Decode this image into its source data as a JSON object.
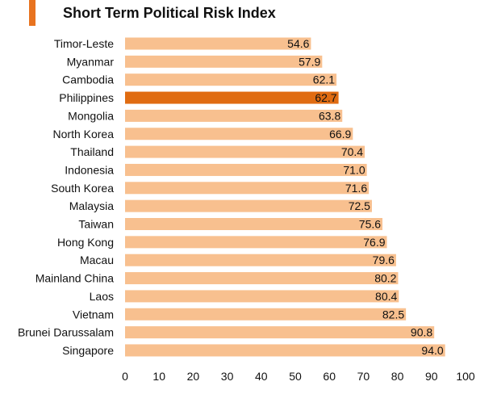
{
  "header": {
    "title": "Short Term Political Risk Index"
  },
  "colors": {
    "accent": "#e8731f",
    "bar": "#f8c08f",
    "highlight_bar": "#e06c12",
    "text": "#111111"
  },
  "chart_data": {
    "type": "bar",
    "orientation": "horizontal",
    "title": "Short Term Political Risk Index",
    "xlabel": "",
    "ylabel": "",
    "xlim": [
      0,
      100
    ],
    "x_ticks": [
      0,
      10,
      20,
      30,
      40,
      50,
      60,
      70,
      80,
      90,
      100
    ],
    "grid": false,
    "legend": "none",
    "highlight": "Philippines",
    "categories": [
      "Timor-Leste",
      "Myanmar",
      "Cambodia",
      "Philippines",
      "Mongolia",
      "North Korea",
      "Thailand",
      "Indonesia",
      "South Korea",
      "Malaysia",
      "Taiwan",
      "Hong Kong",
      "Macau",
      "Mainland China",
      "Laos",
      "Vietnam",
      "Brunei Darussalam",
      "Singapore"
    ],
    "values": [
      54.6,
      57.9,
      62.1,
      62.7,
      63.8,
      66.9,
      70.4,
      71.0,
      71.6,
      72.5,
      75.6,
      76.9,
      79.6,
      80.2,
      80.4,
      82.5,
      90.8,
      94.0
    ],
    "value_labels": [
      "54.6",
      "57.9",
      "62.1",
      "62.7",
      "63.8",
      "66.9",
      "70.4",
      "71.0",
      "71.6",
      "72.5",
      "75.6",
      "76.9",
      "79.6",
      "80.2",
      "80.4",
      "82.5",
      "90.8",
      "94.0"
    ]
  }
}
